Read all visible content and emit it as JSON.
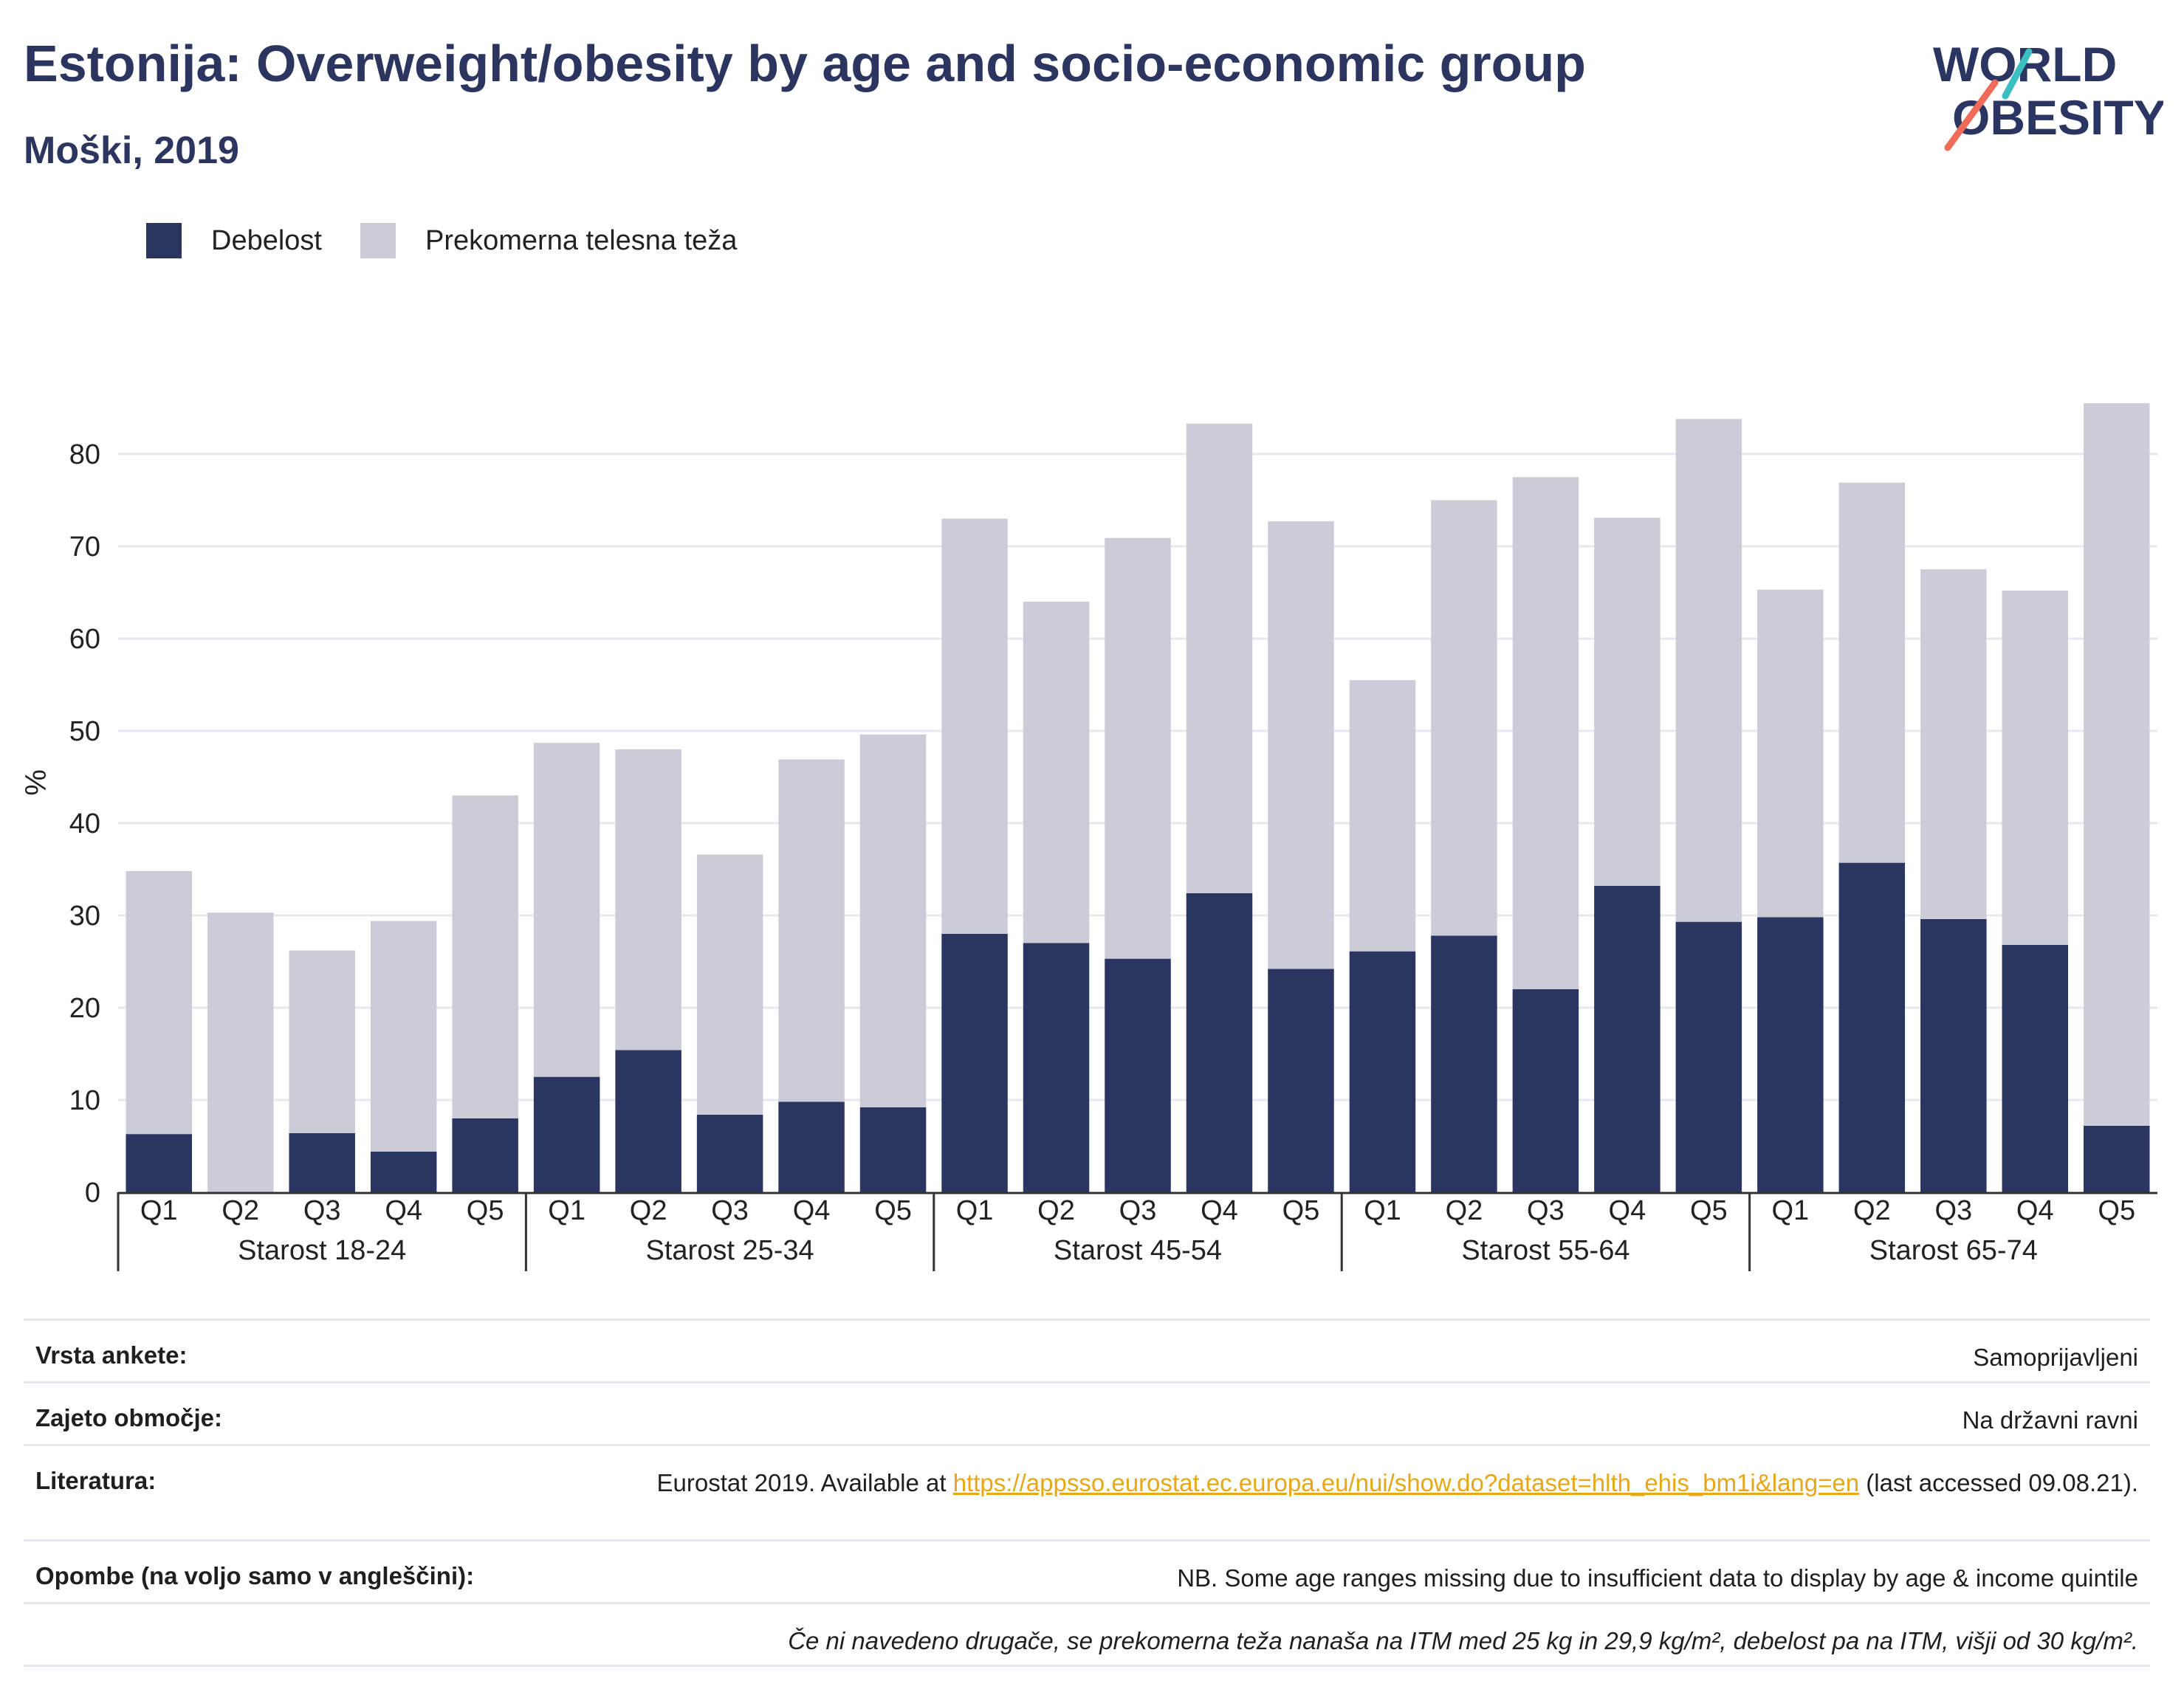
{
  "header": {
    "title": "Estonija: Overweight/obesity by age and socio-economic group",
    "subtitle": "Moški, 2019",
    "logo_line1": "WORLD",
    "logo_line2": "OBESITY"
  },
  "legend": {
    "obesity": "Debelost",
    "overweight": "Prekomerna telesna teža"
  },
  "colors": {
    "obesity": "#2a3561",
    "overweight": "#cbccd8",
    "grid": "#e8e9ee",
    "axis": "#333333",
    "logo_accent_teal": "#3bbfc2",
    "logo_accent_coral": "#ef6c5a"
  },
  "chart_data": {
    "type": "bar",
    "stacked": true,
    "ylabel": "%",
    "ylim": [
      0,
      87
    ],
    "yticks": [
      0,
      10,
      20,
      30,
      40,
      50,
      60,
      70,
      80
    ],
    "grid": true,
    "legend_position": "top-left",
    "groups": [
      "Starost 18-24",
      "Starost 25-34",
      "Starost 45-54",
      "Starost 55-64",
      "Starost 65-74"
    ],
    "categories": [
      "Q1",
      "Q2",
      "Q3",
      "Q4",
      "Q5"
    ],
    "series": [
      {
        "name": "Debelost",
        "values": [
          [
            6.3,
            0,
            6.4,
            4.4,
            8.0
          ],
          [
            12.5,
            15.4,
            8.4,
            9.8,
            9.2
          ],
          [
            28.0,
            27.0,
            25.3,
            32.4,
            24.2
          ],
          [
            26.1,
            27.8,
            22.0,
            33.2,
            29.3
          ],
          [
            29.8,
            35.7,
            29.6,
            26.8,
            7.2
          ]
        ]
      },
      {
        "name": "Prekomerna telesna teža",
        "values": [
          [
            28.5,
            30.3,
            19.8,
            25.0,
            35.0
          ],
          [
            36.2,
            32.6,
            28.2,
            37.1,
            40.4
          ],
          [
            45.0,
            37.0,
            45.6,
            50.9,
            48.5
          ],
          [
            29.4,
            47.2,
            55.5,
            39.9,
            54.5
          ],
          [
            35.5,
            41.2,
            37.9,
            38.4,
            78.3
          ]
        ]
      }
    ]
  },
  "info": {
    "survey_type_label": "Vrsta ankete:",
    "survey_type_value": "Samoprijavljeni",
    "coverage_label": "Zajeto območje:",
    "coverage_value": "Na državni ravni",
    "literature_label": "Literatura:",
    "literature_prefix": "Eurostat 2019. Available at ",
    "literature_link": "https://appsso.eurostat.ec.europa.eu/nui/show.do?dataset=hlth_ehis_bm1i&lang=en",
    "literature_suffix": " (last accessed 09.08.21).",
    "notes_label": "Opombe (na voljo samo v angleščini):",
    "notes_value": "NB. Some age ranges missing due to insufficient data to display by age & income quintile",
    "definition_note": "Če ni navedeno drugače, se prekomerna teža nanaša na ITM med 25 kg in 29,9 kg/m², debelost pa na ITM, višji od 30 kg/m²."
  }
}
